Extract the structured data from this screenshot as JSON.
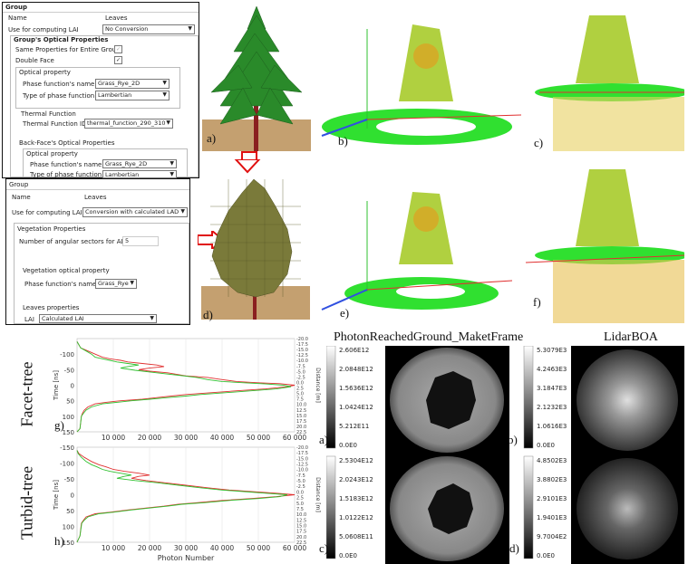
{
  "panel_top": {
    "group_label": "Group",
    "name_label": "Name",
    "name_value": "Leaves",
    "lai_label": "Use for computing LAI",
    "lai_value": "No Conversion",
    "optical_header": "Group's Optical Properties",
    "same_props_label": "Same Properties for Entire Group",
    "double_face_label": "Double Face",
    "double_face_check": "✓",
    "optical_property_label": "Optical property",
    "phase_name_label": "Phase function's name",
    "phase_name_value": "Grass_Rye_2D",
    "phase_type_label": "Type of phase function",
    "phase_type_value": "Lambertian",
    "thermal_header": "Thermal Function",
    "thermal_id_label": "Thermal Function ID",
    "thermal_id_value": "thermal_function_290_310",
    "backface_header": "Back-Face's Optical Properties",
    "bf_optical_label": "Optical property",
    "bf_phase_name_label": "Phase function's name",
    "bf_phase_name_value": "Grass_Rye_2D",
    "bf_phase_type_label": "Type of phase function",
    "bf_phase_type_value": "Lambertian"
  },
  "panel_bottom": {
    "group_label": "Group",
    "name_label": "Name",
    "name_value": "Leaves",
    "lai_label": "Use for computing LAI",
    "lai_value": "Conversion with calculated LAD",
    "veg_header": "Vegetation Properties",
    "sectors_label": "Number of angular sectors for ALA",
    "sectors_value": "5",
    "veg_optical_label": "Vegetation optical property",
    "phase_name_label": "Phase function's name",
    "phase_name_value": "Grass_Rye",
    "leaves_header": "Leaves properties",
    "lai_short_label": "LAI",
    "lai_short_value": "Calculated LAI"
  },
  "labels": {
    "a_top": "a)",
    "b_top": "b)",
    "c_top": "c)",
    "d_top": "d)",
    "e_top": "e)",
    "f_top": "f)",
    "g": "g)",
    "h": "h)",
    "a_bot": "a)",
    "b_bot": "b)",
    "c_bot": "c)",
    "d_bot": "d)"
  },
  "row_titles": {
    "facet": "Facet-tree",
    "turbid": "Turbid-tree"
  },
  "headings": {
    "left": "PhotonReachedGround_MaketFrame",
    "right": "LidarBOA"
  },
  "colorbars": {
    "a": [
      "2.606E12",
      "2.0848E12",
      "1.5636E12",
      "1.0424E12",
      "5.212E11",
      "0.0E0"
    ],
    "b": [
      "5.3079E3",
      "4.2463E3",
      "3.1847E3",
      "2.1232E3",
      "1.0616E3",
      "0.0E0"
    ],
    "c": [
      "2.5304E12",
      "2.0243E12",
      "1.5183E12",
      "1.0122E12",
      "5.0608E11",
      "0.0E0"
    ],
    "d": [
      "4.8502E3",
      "3.8802E3",
      "2.9101E3",
      "1.9401E3",
      "9.7004E2",
      "0.0E0"
    ]
  },
  "chart_data": [
    {
      "type": "line",
      "title": "",
      "xlabel": "",
      "ylabel": "Time [ns]",
      "y2label": "Distance [m]",
      "xlim": [
        0,
        60000
      ],
      "ylim": [
        -150,
        150
      ],
      "x_ticks": [
        "10 000",
        "20 000",
        "30 000",
        "40 000",
        "50 000",
        "60 000"
      ],
      "y_ticks": [
        "-100",
        "-50",
        "0",
        "50",
        "100",
        "150"
      ],
      "y2_ticks": [
        "-20.0",
        "-17.5",
        "-15.0",
        "-12.5",
        "-10.0",
        "-7.5",
        "-5.0",
        "-2.5",
        "0.0",
        "2.5",
        "5.0",
        "7.5",
        "10.0",
        "12.5",
        "15.0",
        "17.5",
        "20.0",
        "22.5"
      ],
      "series": [
        {
          "color": "#e03030",
          "points": [
            [
              0,
              150
            ],
            [
              800,
              140
            ],
            [
              1200,
              100
            ],
            [
              1500,
              90
            ],
            [
              2000,
              80
            ],
            [
              3000,
              70
            ],
            [
              5000,
              60
            ],
            [
              8000,
              55
            ],
            [
              12000,
              50
            ],
            [
              18000,
              45
            ],
            [
              22000,
              40
            ],
            [
              26000,
              35
            ],
            [
              30000,
              30
            ],
            [
              36000,
              25
            ],
            [
              44000,
              18
            ],
            [
              52000,
              12
            ],
            [
              58000,
              5
            ],
            [
              60000,
              0
            ],
            [
              56000,
              -5
            ],
            [
              50000,
              -8
            ],
            [
              44000,
              -12
            ],
            [
              40000,
              -18
            ],
            [
              36000,
              -25
            ],
            [
              30000,
              -30
            ],
            [
              25000,
              -40
            ],
            [
              20000,
              -45
            ],
            [
              17000,
              -50
            ],
            [
              20000,
              -55
            ],
            [
              24000,
              -60
            ],
            [
              22000,
              -65
            ],
            [
              18000,
              -70
            ],
            [
              14000,
              -75
            ],
            [
              12000,
              -80
            ],
            [
              9000,
              -85
            ],
            [
              7000,
              -90
            ],
            [
              5000,
              -100
            ],
            [
              3000,
              -110
            ],
            [
              1000,
              -120
            ],
            [
              0,
              -140
            ]
          ]
        },
        {
          "color": "#30c030",
          "points": [
            [
              0,
              150
            ],
            [
              800,
              140
            ],
            [
              1200,
              100
            ],
            [
              1800,
              90
            ],
            [
              2500,
              80
            ],
            [
              4000,
              70
            ],
            [
              7000,
              60
            ],
            [
              11000,
              55
            ],
            [
              15000,
              50
            ],
            [
              20000,
              45
            ],
            [
              25000,
              40
            ],
            [
              30000,
              35
            ],
            [
              34000,
              30
            ],
            [
              40000,
              25
            ],
            [
              48000,
              18
            ],
            [
              55000,
              12
            ],
            [
              59000,
              5
            ],
            [
              57000,
              0
            ],
            [
              52000,
              -4
            ],
            [
              46000,
              -8
            ],
            [
              40000,
              -12
            ],
            [
              36000,
              -18
            ],
            [
              33000,
              -25
            ],
            [
              28000,
              -32
            ],
            [
              22000,
              -40
            ],
            [
              16000,
              -48
            ],
            [
              12000,
              -55
            ],
            [
              14000,
              -60
            ],
            [
              17000,
              -65
            ],
            [
              14000,
              -70
            ],
            [
              11000,
              -75
            ],
            [
              9000,
              -80
            ],
            [
              7000,
              -85
            ],
            [
              5000,
              -90
            ],
            [
              4000,
              -100
            ],
            [
              2500,
              -110
            ],
            [
              1000,
              -120
            ],
            [
              0,
              -140
            ]
          ]
        }
      ]
    },
    {
      "type": "line",
      "title": "",
      "xlabel": "Photon Number",
      "ylabel": "Time [ns]",
      "y2label": "Distance [m]",
      "xlim": [
        0,
        60000
      ],
      "ylim": [
        -150,
        150
      ],
      "x_ticks": [
        "10 000",
        "20 000",
        "30 000",
        "40 000",
        "50 000",
        "60 000"
      ],
      "y_ticks": [
        "-150",
        "-100",
        "-50",
        "0",
        "50",
        "100",
        "150"
      ],
      "y2_ticks": [
        "-20.0",
        "-17.5",
        "-15.0",
        "-12.5",
        "-10.0",
        "-7.5",
        "-5.0",
        "-2.5",
        "0.0",
        "2.5",
        "5.0",
        "7.5",
        "10.0",
        "12.5",
        "15.0",
        "17.5",
        "20.0",
        "22.5"
      ],
      "series": [
        {
          "color": "#e03030",
          "points": [
            [
              0,
              150
            ],
            [
              800,
              130
            ],
            [
              1200,
              90
            ],
            [
              1800,
              80
            ],
            [
              2500,
              70
            ],
            [
              5000,
              60
            ],
            [
              9000,
              55
            ],
            [
              14000,
              48
            ],
            [
              19000,
              42
            ],
            [
              24000,
              36
            ],
            [
              28000,
              30
            ],
            [
              33000,
              25
            ],
            [
              40000,
              18
            ],
            [
              48000,
              12
            ],
            [
              55000,
              6
            ],
            [
              60000,
              0
            ],
            [
              55000,
              -5
            ],
            [
              48000,
              -10
            ],
            [
              42000,
              -15
            ],
            [
              36000,
              -22
            ],
            [
              30000,
              -30
            ],
            [
              24000,
              -38
            ],
            [
              19000,
              -45
            ],
            [
              15000,
              -52
            ],
            [
              17000,
              -58
            ],
            [
              20000,
              -62
            ],
            [
              17000,
              -68
            ],
            [
              13000,
              -74
            ],
            [
              10000,
              -80
            ],
            [
              8000,
              -88
            ],
            [
              6000,
              -95
            ],
            [
              4000,
              -105
            ],
            [
              2000,
              -118
            ],
            [
              500,
              -130
            ],
            [
              0,
              -140
            ]
          ]
        },
        {
          "color": "#30c030",
          "points": [
            [
              0,
              150
            ],
            [
              800,
              130
            ],
            [
              1300,
              90
            ],
            [
              2000,
              80
            ],
            [
              3000,
              70
            ],
            [
              6000,
              60
            ],
            [
              10000,
              55
            ],
            [
              15000,
              48
            ],
            [
              20000,
              42
            ],
            [
              25000,
              36
            ],
            [
              29000,
              30
            ],
            [
              35000,
              25
            ],
            [
              42000,
              18
            ],
            [
              50000,
              12
            ],
            [
              56000,
              6
            ],
            [
              58000,
              0
            ],
            [
              52000,
              -5
            ],
            [
              46000,
              -10
            ],
            [
              40000,
              -15
            ],
            [
              34000,
              -22
            ],
            [
              28000,
              -30
            ],
            [
              22000,
              -38
            ],
            [
              16000,
              -45
            ],
            [
              11000,
              -52
            ],
            [
              13000,
              -58
            ],
            [
              15000,
              -62
            ],
            [
              12000,
              -68
            ],
            [
              9000,
              -74
            ],
            [
              7000,
              -80
            ],
            [
              5500,
              -88
            ],
            [
              4000,
              -95
            ],
            [
              2500,
              -105
            ],
            [
              1200,
              -118
            ],
            [
              300,
              -130
            ],
            [
              0,
              -140
            ]
          ]
        }
      ]
    }
  ]
}
